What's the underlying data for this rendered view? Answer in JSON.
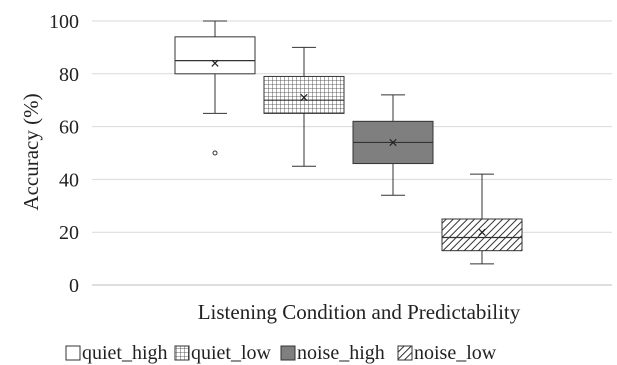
{
  "chart_data": {
    "type": "box",
    "title": "",
    "xlabel": "Listening Condition and Predictability",
    "ylabel": "Accuracy (%)",
    "ylim": [
      0,
      100
    ],
    "yticks": [
      0,
      20,
      40,
      60,
      80,
      100
    ],
    "grid": true,
    "legend_placement": "bottom",
    "series": [
      {
        "name": "quiet_high",
        "whisker_low": 65,
        "q1": 80,
        "median": 85,
        "q3": 94,
        "whisker_high": 100,
        "mean": 84,
        "outliers": [
          50
        ],
        "fill": "#ffffff",
        "pattern": "none"
      },
      {
        "name": "quiet_low",
        "whisker_low": 45,
        "q1": 65,
        "median": 70,
        "q3": 79,
        "whisker_high": 90,
        "mean": 71,
        "outliers": [],
        "fill": "#ffffff",
        "pattern": "grid"
      },
      {
        "name": "noise_high",
        "whisker_low": 34,
        "q1": 46,
        "median": 54,
        "q3": 62,
        "whisker_high": 72,
        "mean": 54,
        "outliers": [],
        "fill": "#7f7f7f",
        "pattern": "none"
      },
      {
        "name": "noise_low",
        "whisker_low": 8,
        "q1": 13,
        "median": 18,
        "q3": 25,
        "whisker_high": 42,
        "mean": 20,
        "outliers": [],
        "fill": "#ffffff",
        "pattern": "diagonal"
      }
    ]
  }
}
